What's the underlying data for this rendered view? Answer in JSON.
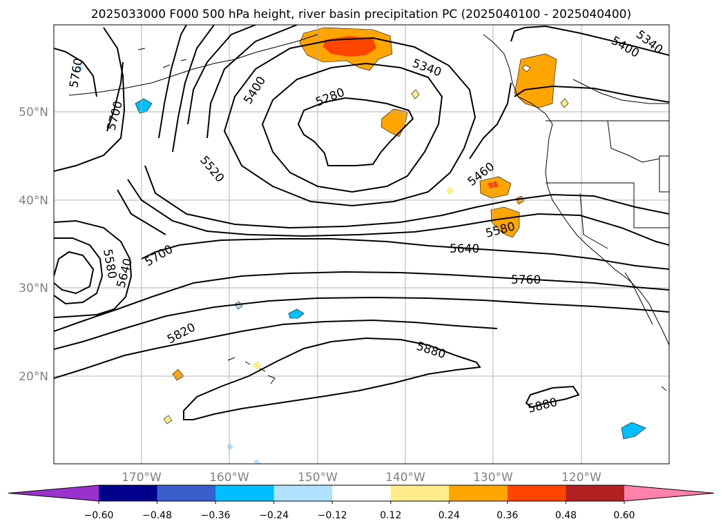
{
  "title": "2025033000 F000 500 hPa height, river basin precipitation PC (2025040100 - 2025040400)",
  "map": {
    "lon_ticks": [
      "170°W",
      "160°W",
      "150°W",
      "140°W",
      "130°W",
      "120°W"
    ],
    "lat_ticks": [
      "50°N",
      "40°N",
      "30°N",
      "20°N"
    ],
    "grid": true,
    "contour_labels": [
      "5760",
      "5700",
      "5400",
      "5280",
      "5340",
      "5340",
      "5400",
      "5520",
      "5460",
      "5580",
      "5640",
      "5700",
      "5580",
      "5640",
      "5760",
      "5820",
      "5880",
      "5880"
    ]
  },
  "colorbar": {
    "tick_labels": [
      "−0.60",
      "−0.48",
      "−0.36",
      "−0.24",
      "−0.12",
      "0.12",
      "0.24",
      "0.36",
      "0.48",
      "0.60"
    ],
    "colors": [
      "#9932cc",
      "#00008b",
      "#3a5fcd",
      "#00bfff",
      "#b0e2ff",
      "#ffffff",
      "#ffec8b",
      "#ffa500",
      "#ff4500",
      "#b22222",
      "#ff82ab"
    ],
    "extend": "both"
  }
}
